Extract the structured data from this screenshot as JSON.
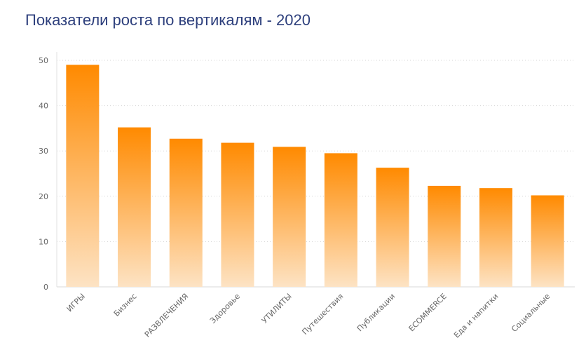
{
  "chart_data": {
    "type": "bar",
    "title": "Показатели роста по вертикалям - 2020",
    "categories": [
      "ИГРЫ",
      "Бизнес",
      "РАЗВЛЕЧЕНИЯ",
      "Здоровье",
      "УТИЛИТЫ",
      "Путешествия",
      "Публикации",
      "ECOMMERCE",
      "Еда и напитки",
      "Социальные"
    ],
    "values": [
      49,
      35.2,
      32.7,
      31.8,
      30.9,
      29.5,
      26.3,
      22.3,
      21.8,
      20.2
    ],
    "yticks": [
      0,
      10,
      20,
      30,
      40,
      50
    ],
    "ylim": [
      0,
      50
    ],
    "grid": true,
    "colors": {
      "bar_top": "#ff8a00",
      "bar_bottom": "#fde3c4",
      "title": "#2d3f7c",
      "grid": "#d6d6d6"
    }
  }
}
